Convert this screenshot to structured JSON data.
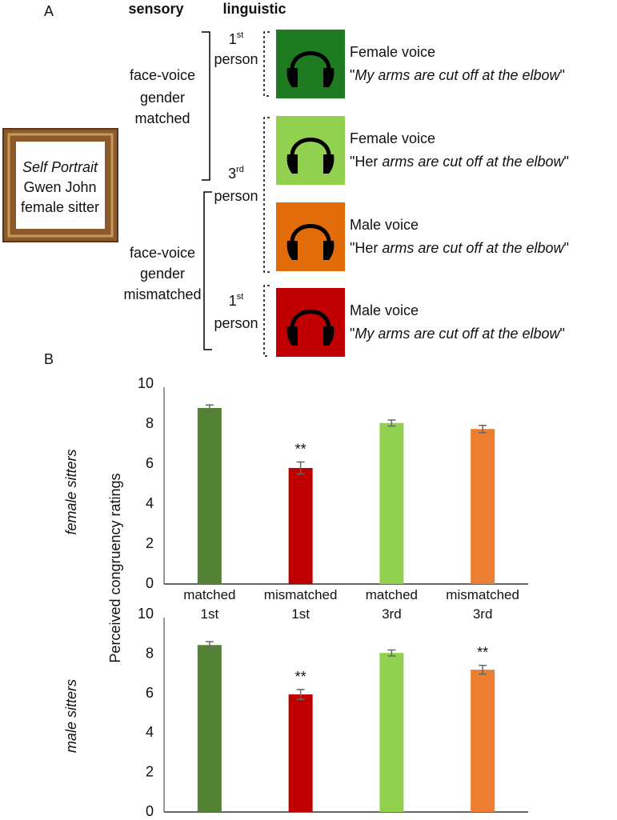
{
  "panel_a": {
    "label": "A",
    "headers": [
      "sensory",
      "linguistic"
    ],
    "portrait": {
      "title": "Self Portrait",
      "artist": "Gwen John",
      "sitter": "female sitter"
    },
    "groups": [
      [
        "face-voice",
        "gender",
        "matched"
      ],
      [
        "face-voice",
        "gender",
        "mismatched"
      ]
    ],
    "persons": [
      {
        "num": "1",
        "sup": "st",
        "word": "person"
      },
      {
        "num": "3",
        "sup": "rd",
        "word": "person"
      },
      {
        "num": "1",
        "sup": "st",
        "word": "person"
      }
    ],
    "stimuli": [
      {
        "color": "#1e7b22",
        "voice": "Female voice",
        "quote": [
          "\"",
          "My arms are cut off at the elbow",
          "\""
        ]
      },
      {
        "color": "#92d050",
        "voice": "Female voice",
        "quote": [
          "\"Her ",
          "arms are cut off at the elbow",
          "\""
        ]
      },
      {
        "color": "#e36c0a",
        "voice": "Male voice",
        "quote": [
          "\"Her ",
          "arms are cut off at the elbow",
          "\""
        ]
      },
      {
        "color": "#c00000",
        "voice": "Male voice",
        "quote": [
          "\"",
          "My arms are cut off at the elbow",
          "\""
        ]
      }
    ]
  },
  "panel_b": {
    "label": "B"
  },
  "chart_data": [
    {
      "type": "bar",
      "title": "female sitters",
      "ylabel": "Perceived congruency ratings",
      "categories": [
        "matched 1st",
        "mismatched 1st",
        "matched 3rd",
        "mismatched 3rd"
      ],
      "values": [
        8.8,
        5.8,
        8.05,
        7.75
      ],
      "errors": [
        0.15,
        0.3,
        0.15,
        0.18
      ],
      "colors": [
        "#548235",
        "#c00000",
        "#92d050",
        "#ed7d31"
      ],
      "annotations": [
        {
          "index": 1,
          "text": "**"
        }
      ],
      "ylim": [
        0,
        10
      ],
      "yticks": [
        0,
        2,
        4,
        6,
        8,
        10
      ]
    },
    {
      "type": "bar",
      "title": "male sitters",
      "values": [
        8.45,
        5.95,
        8.05,
        7.2
      ],
      "errors": [
        0.17,
        0.25,
        0.15,
        0.22
      ],
      "colors": [
        "#548235",
        "#c00000",
        "#92d050",
        "#ed7d31"
      ],
      "annotations": [
        {
          "index": 1,
          "text": "**"
        },
        {
          "index": 3,
          "text": "**"
        }
      ],
      "ylim": [
        0,
        10
      ],
      "yticks": [
        0,
        2,
        4,
        6,
        8,
        10
      ]
    }
  ]
}
